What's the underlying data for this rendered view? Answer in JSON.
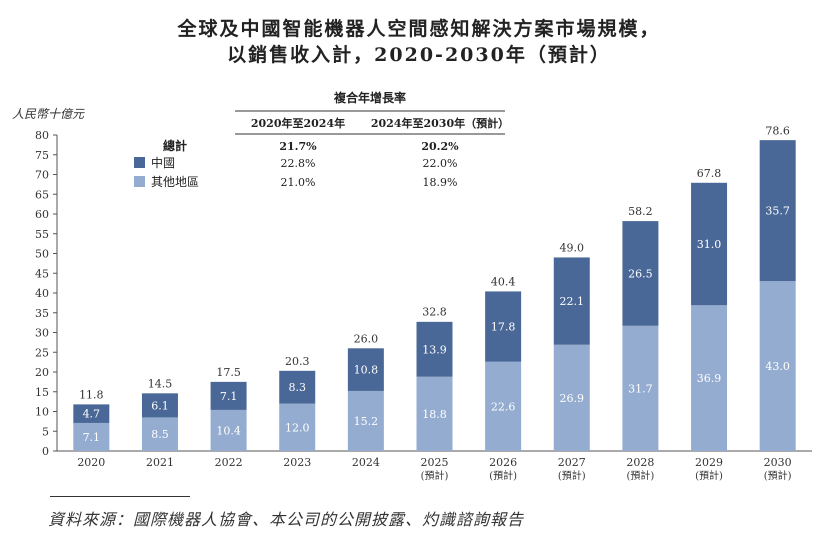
{
  "title": {
    "line1": "全球及中國智能機器人空間感知解決方案市場規模，",
    "line2": "以銷售收入計，2020-2030年（預計）"
  },
  "cagr_table": {
    "heading": "複合年增長率",
    "col1": "2020年至2024年",
    "col2": "2024年至2030年（預計）",
    "rows": [
      {
        "label": "總計",
        "v1": "21.7%",
        "v2": "20.2%",
        "swatch": ""
      },
      {
        "label": "中國",
        "v1": "22.8%",
        "v2": "22.0%",
        "swatch": "#4a6897"
      },
      {
        "label": "其他地區",
        "v1": "21.0%",
        "v2": "18.9%",
        "swatch": "#94acd0"
      }
    ]
  },
  "chart_data": {
    "type": "bar",
    "stacked": true,
    "ylabel": "人民幣十億元",
    "ylim": [
      0,
      80
    ],
    "yticks": [
      0,
      5,
      10,
      15,
      20,
      25,
      30,
      35,
      40,
      45,
      50,
      55,
      60,
      65,
      70,
      75,
      80
    ],
    "categories": [
      "2020",
      "2021",
      "2022",
      "2023",
      "2024",
      "2025",
      "2026",
      "2027",
      "2028",
      "2029",
      "2030"
    ],
    "category_notes": [
      "",
      "",
      "",
      "",
      "",
      "(預計)",
      "(預計)",
      "(預計)",
      "(預計)",
      "(預計)",
      "(預計)"
    ],
    "series": [
      {
        "name": "其他地區",
        "color": "#94acd0",
        "values": [
          7.1,
          8.5,
          10.4,
          12.0,
          15.2,
          18.8,
          22.6,
          26.9,
          31.7,
          36.9,
          43.0
        ]
      },
      {
        "name": "中國",
        "color": "#4a6897",
        "values": [
          4.7,
          6.1,
          7.1,
          8.3,
          10.8,
          13.9,
          17.8,
          22.1,
          26.5,
          31.0,
          35.7
        ]
      }
    ],
    "totals": [
      11.8,
      14.5,
      17.5,
      20.3,
      26.0,
      32.8,
      40.4,
      49.0,
      58.2,
      67.8,
      78.6
    ]
  },
  "source": "資料來源：國際機器人協會、本公司的公開披露、灼識諮詢報告"
}
